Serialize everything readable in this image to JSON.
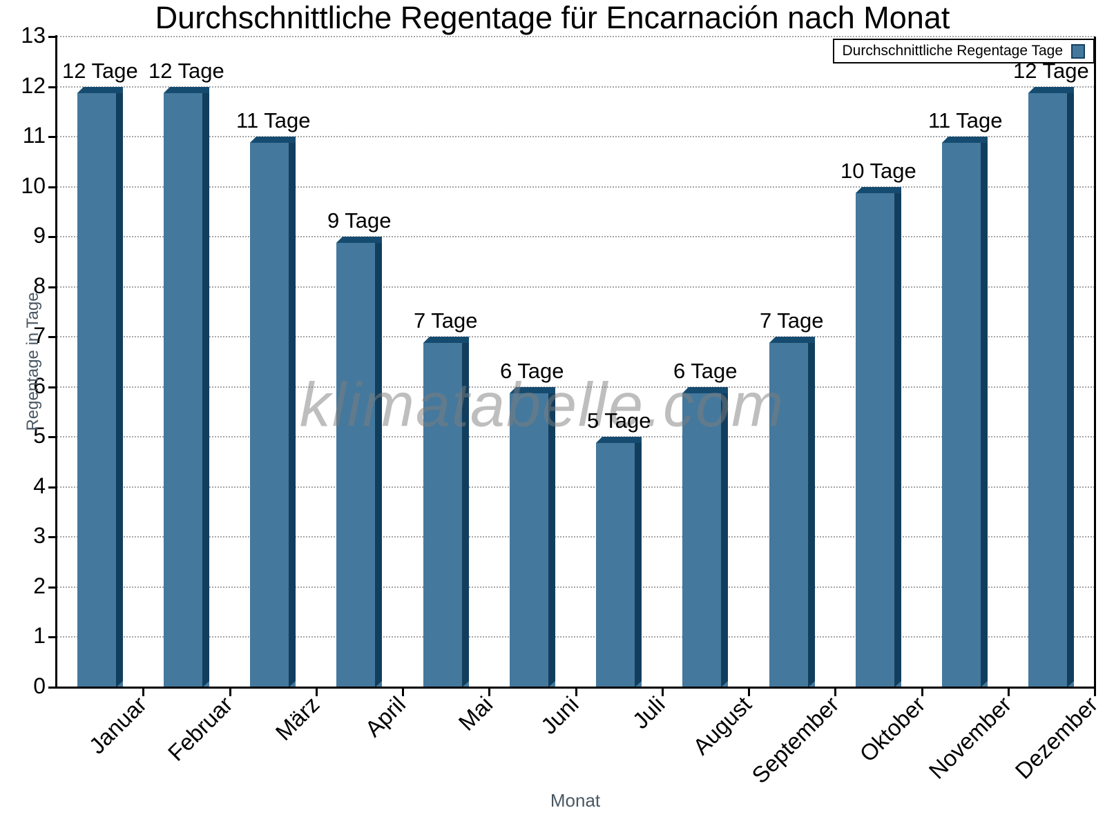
{
  "title": "Durchschnittliche Regentage für Encarnación nach Monat",
  "legend": {
    "label": "Durchschnittliche Regentage Tage"
  },
  "watermark": "klimatabelle.com",
  "colors": {
    "bar_fill": "#45789D",
    "bar_side": "#123E5D",
    "bar_top": "#164B70",
    "axis_title_text": "#4A5763",
    "grid": "#A5A5A5"
  },
  "chart_data": {
    "type": "bar",
    "title": "Durchschnittliche Regentage für Encarnación nach Monat",
    "categories": [
      "Januar",
      "Februar",
      "März",
      "April",
      "Mai",
      "Juni",
      "Juli",
      "August",
      "September",
      "Oktober",
      "November",
      "Dezember"
    ],
    "values": [
      12,
      12,
      11,
      9,
      7,
      6,
      5,
      6,
      7,
      10,
      11,
      12
    ],
    "value_label_suffix": " Tage",
    "value_labels": [
      "12 Tage",
      "12 Tage",
      "11 Tage",
      "9 Tage",
      "7 Tage",
      "6 Tage",
      "5 Tage",
      "6 Tage",
      "7 Tage",
      "10 Tage",
      "11 Tage",
      "12 Tage"
    ],
    "xlabel": "Monat",
    "ylabel": "Regentage in Tage",
    "ylim": [
      0,
      13
    ],
    "ytick_step": 1,
    "grid": "horizontal-dotted",
    "legend_entries": [
      "Durchschnittliche Regentage Tage"
    ],
    "legend_position": "top-right"
  }
}
